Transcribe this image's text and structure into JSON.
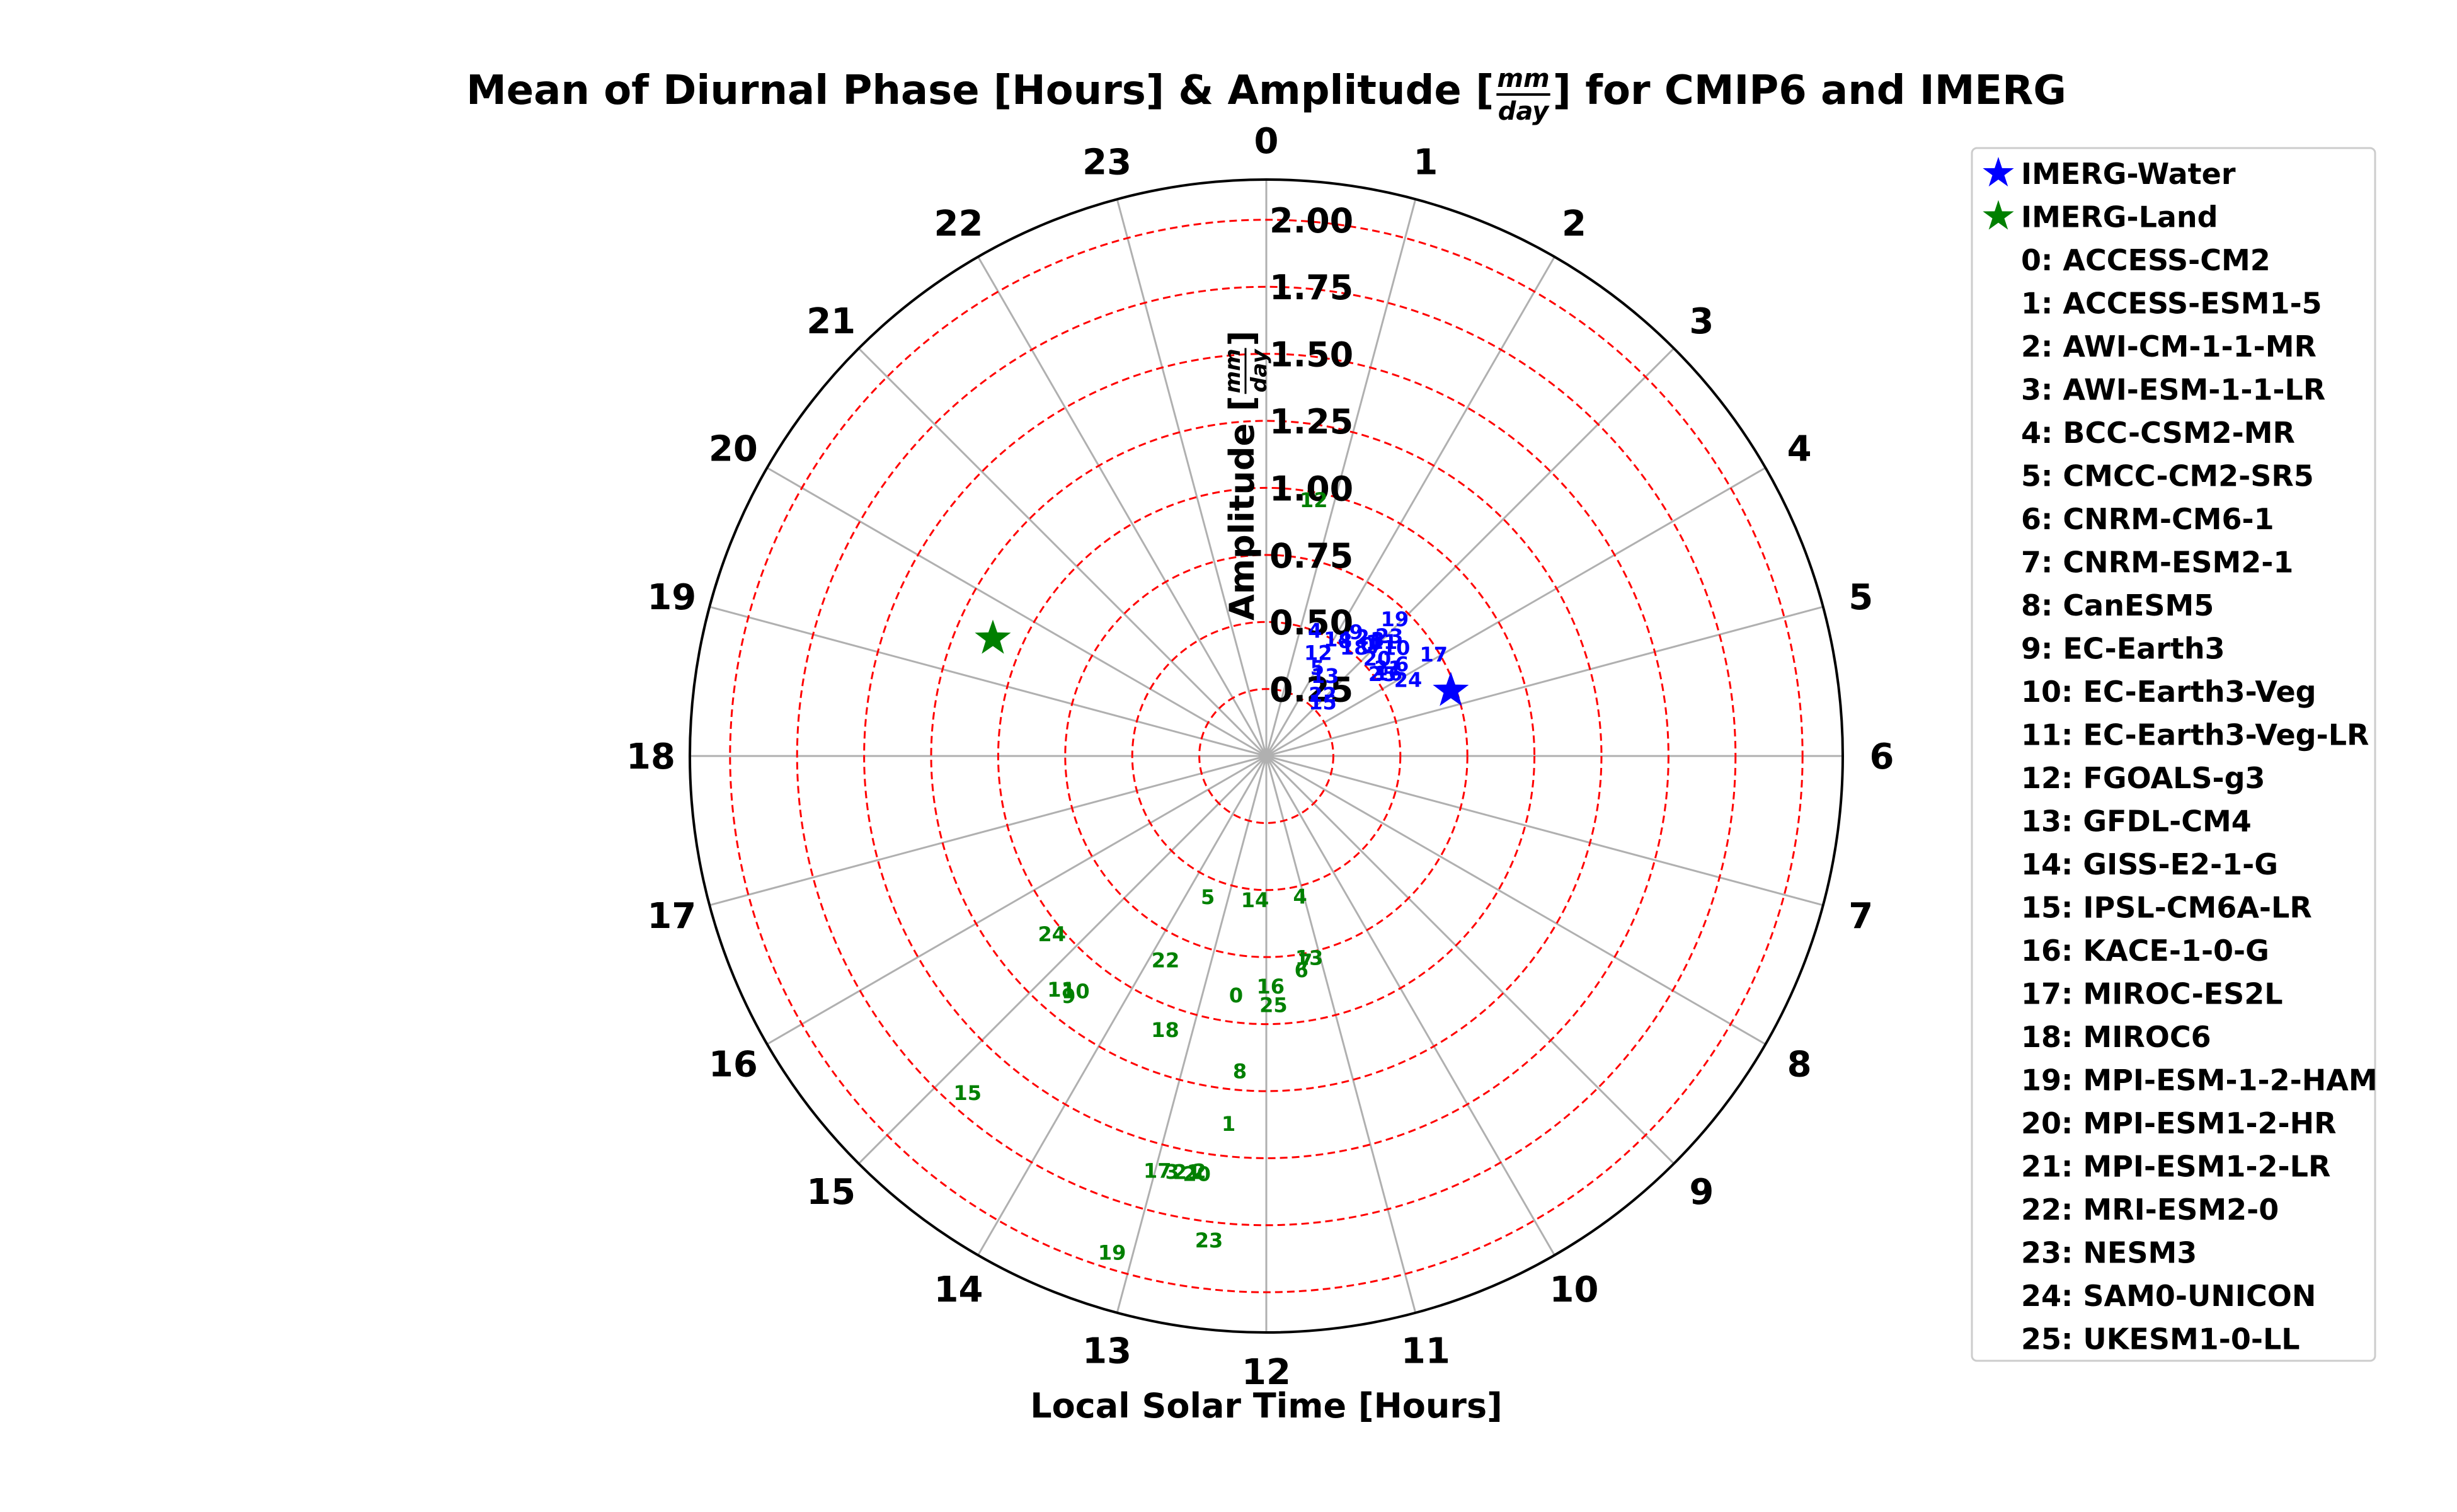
{
  "chart_data": {
    "type": "scatter",
    "projection": "polar",
    "title": {
      "prefix": "Mean of Diurnal Phase [Hours] & Amplitude [",
      "unit_numerator": "mm",
      "unit_denominator": "day",
      "suffix": "] for CMIP6 and IMERG"
    },
    "xlabel": "Local Solar Time [Hours]",
    "ylabel": {
      "prefix": "Amplitude [",
      "unit_numerator": "mm",
      "unit_denominator": "day",
      "suffix": "]"
    },
    "theta_ticks": [
      "0",
      "1",
      "2",
      "3",
      "4",
      "5",
      "6",
      "7",
      "8",
      "9",
      "10",
      "11",
      "12",
      "13",
      "14",
      "15",
      "16",
      "17",
      "18",
      "19",
      "20",
      "21",
      "22",
      "23"
    ],
    "r_ticks": [
      "0.25",
      "0.50",
      "0.75",
      "1.00",
      "1.25",
      "1.50",
      "1.75",
      "2.00"
    ],
    "r_range": [
      0,
      2.15
    ],
    "theta_direction": "clockwise",
    "theta_zero": "top",
    "grid": true,
    "legend_position": "right",
    "colors": {
      "water": "#0000ff",
      "land": "#008000",
      "rings": "#ff0000",
      "spokes": "#b0b0b0"
    },
    "legend": {
      "series": [
        {
          "name": "IMERG-Water",
          "color": "#0000ff"
        },
        {
          "name": "IMERG-Land",
          "color": "#008000"
        }
      ],
      "models": [
        "0: ACCESS-CM2",
        "1: ACCESS-ESM1-5",
        "2: AWI-CM-1-1-MR",
        "3: AWI-ESM-1-1-LR",
        "4: BCC-CSM2-MR",
        "5: CMCC-CM2-SR5",
        "6: CNRM-CM6-1",
        "7: CNRM-ESM2-1",
        "8: CanESM5",
        "9: EC-Earth3",
        "10: EC-Earth3-Veg",
        "11: EC-Earth3-Veg-LR",
        "12: FGOALS-g3",
        "13: GFDL-CM4",
        "14: GISS-E2-1-G",
        "15: IPSL-CM6A-LR",
        "16: KACE-1-0-G",
        "17: MIROC-ES2L",
        "18: MIROC6",
        "19: MPI-ESM-1-2-HAM",
        "20: MPI-ESM1-2-HR",
        "21: MPI-ESM1-2-LR",
        "22: MRI-ESM2-0",
        "23: NESM3",
        "24: SAM0-UNICON",
        "25: UKESM1-0-LL"
      ]
    },
    "imerg": [
      {
        "name": "IMERG-Water",
        "hour": 4.7,
        "amplitude": 0.73
      },
      {
        "name": "IMERG-Land",
        "hour": 19.55,
        "amplitude": 1.11
      }
    ],
    "water_points": [
      {
        "label": "0",
        "hour": 2.82,
        "amplitude": 0.56
      },
      {
        "label": "1",
        "hour": 2.88,
        "amplitude": 0.58
      },
      {
        "label": "2",
        "hour": 2.6,
        "amplitude": 0.57
      },
      {
        "label": "3",
        "hour": 2.92,
        "amplitude": 0.6
      },
      {
        "label": "4",
        "hour": 1.42,
        "amplitude": 0.5
      },
      {
        "label": "5",
        "hour": 2.0,
        "amplitude": 0.38
      },
      {
        "label": "6",
        "hour": 3.73,
        "amplitude": 0.61
      },
      {
        "label": "7",
        "hour": 3.0,
        "amplitude": 0.58
      },
      {
        "label": "8",
        "hour": 2.3,
        "amplitude": 0.52
      },
      {
        "label": "9",
        "hour": 2.4,
        "amplitude": 0.57
      },
      {
        "label": "10",
        "hour": 3.35,
        "amplitude": 0.63
      },
      {
        "label": "11",
        "hour": 3.05,
        "amplitude": 0.61
      },
      {
        "label": "12",
        "hour": 1.78,
        "amplitude": 0.43
      },
      {
        "label": "13",
        "hour": 2.42,
        "amplitude": 0.37
      },
      {
        "label": "14",
        "hour": 2.1,
        "amplitude": 0.51
      },
      {
        "label": "15",
        "hour": 3.1,
        "amplitude": 0.29
      },
      {
        "label": "16",
        "hour": 3.73,
        "amplitude": 0.55
      },
      {
        "label": "17",
        "hour": 3.92,
        "amplitude": 0.73
      },
      {
        "label": "18",
        "hour": 2.6,
        "amplitude": 0.52
      },
      {
        "label": "19",
        "hour": 2.88,
        "amplitude": 0.7
      },
      {
        "label": "20",
        "hour": 3.25,
        "amplitude": 0.55
      },
      {
        "label": "21",
        "hour": 3.62,
        "amplitude": 0.56
      },
      {
        "label": "22",
        "hour": 2.85,
        "amplitude": 0.31
      },
      {
        "label": "23",
        "hour": 3.05,
        "amplitude": 0.64
      },
      {
        "label": "24",
        "hour": 4.12,
        "amplitude": 0.6
      },
      {
        "label": "25",
        "hour": 3.65,
        "amplitude": 0.53
      }
    ],
    "land_points": [
      {
        "label": "0",
        "hour": 12.48,
        "amplitude": 0.9
      },
      {
        "label": "1",
        "hour": 12.39,
        "amplitude": 1.38
      },
      {
        "label": "2",
        "hour": 12.61,
        "amplitude": 1.57
      },
      {
        "label": "3",
        "hour": 12.85,
        "amplitude": 1.59
      },
      {
        "label": "4",
        "hour": 11.1,
        "amplitude": 0.54
      },
      {
        "label": "5",
        "hour": 13.5,
        "amplitude": 0.57
      },
      {
        "label": "6",
        "hour": 11.38,
        "amplitude": 0.81
      },
      {
        "label": "7",
        "hour": 11.28,
        "amplitude": 0.78
      },
      {
        "label": "8",
        "hour": 12.32,
        "amplitude": 1.18
      },
      {
        "label": "9",
        "hour": 14.63,
        "amplitude": 1.16
      },
      {
        "label": "10",
        "hour": 14.6,
        "amplitude": 1.13
      },
      {
        "label": "11",
        "hour": 14.75,
        "amplitude": 1.16
      },
      {
        "label": "12",
        "hour": 0.7,
        "amplitude": 0.97
      },
      {
        "label": "13",
        "hour": 11.2,
        "amplitude": 0.77
      },
      {
        "label": "14",
        "hour": 12.3,
        "amplitude": 0.54
      },
      {
        "label": "15",
        "hour": 14.77,
        "amplitude": 1.68
      },
      {
        "label": "16",
        "hour": 11.93,
        "amplitude": 0.86
      },
      {
        "label": "17",
        "hour": 12.98,
        "amplitude": 1.6
      },
      {
        "label": "18",
        "hour": 13.35,
        "amplitude": 1.09
      },
      {
        "label": "19",
        "hour": 13.15,
        "amplitude": 1.94
      },
      {
        "label": "20",
        "hour": 12.63,
        "amplitude": 1.58
      },
      {
        "label": "21",
        "hour": 12.72,
        "amplitude": 1.58
      },
      {
        "label": "22",
        "hour": 13.75,
        "amplitude": 0.85
      },
      {
        "label": "23",
        "hour": 12.45,
        "amplitude": 1.82
      },
      {
        "label": "24",
        "hour": 15.35,
        "amplitude": 1.04
      },
      {
        "label": "25",
        "hour": 11.89,
        "amplitude": 0.93
      }
    ]
  }
}
